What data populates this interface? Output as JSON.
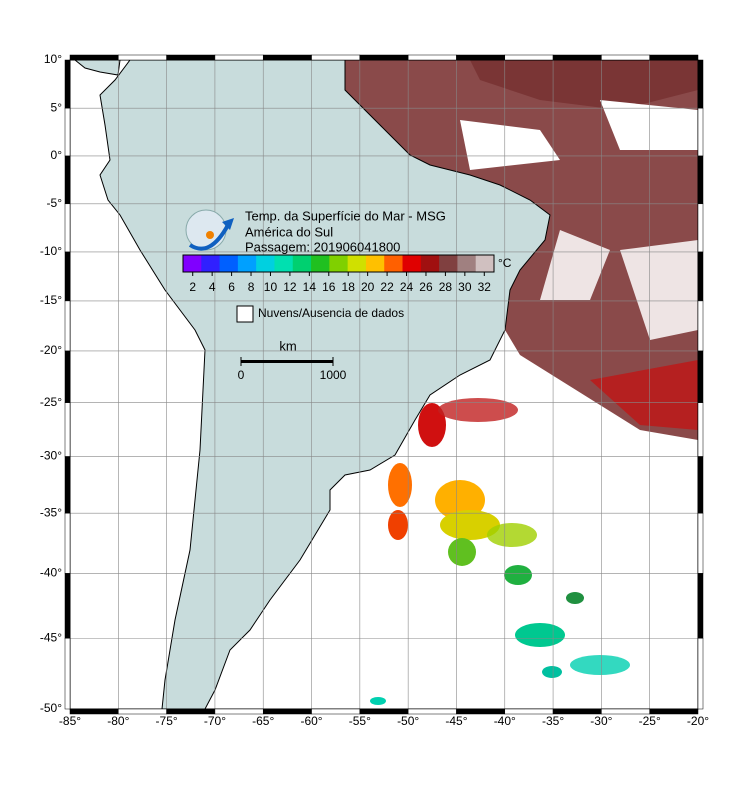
{
  "title_lines": [
    "Temp. da Superfície do Mar - MSG",
    "América do Sul",
    "Passagem: 201906041800"
  ],
  "map": {
    "xlim": [
      -85,
      -20
    ],
    "ylim": [
      -50,
      10
    ],
    "xticks": [
      {
        "value": -85,
        "label": "-85°"
      },
      {
        "value": -80,
        "label": "-80°"
      },
      {
        "value": -75,
        "label": "-75°"
      },
      {
        "value": -70,
        "label": "-70°"
      },
      {
        "value": -65,
        "label": "-65°"
      },
      {
        "value": -60,
        "label": "-60°"
      },
      {
        "value": -55,
        "label": "-55°"
      },
      {
        "value": -50,
        "label": "-50°"
      },
      {
        "value": -45,
        "label": "-45°"
      },
      {
        "value": -40,
        "label": "-40°"
      },
      {
        "value": -35,
        "label": "-35°"
      },
      {
        "value": -30,
        "label": "-30°"
      },
      {
        "value": -25,
        "label": "-25°"
      },
      {
        "value": -20,
        "label": "-20°"
      }
    ],
    "yticks": [
      {
        "value": 10,
        "label": "10°"
      },
      {
        "value": 5,
        "label": "5°"
      },
      {
        "value": 0,
        "label": "0°"
      },
      {
        "value": -5,
        "label": "-5°"
      },
      {
        "value": -10,
        "label": "-10°"
      },
      {
        "value": -15,
        "label": "-15°"
      },
      {
        "value": -20,
        "label": "-20°"
      },
      {
        "value": -25,
        "label": "-25°"
      },
      {
        "value": -30,
        "label": "-30°"
      },
      {
        "value": -35,
        "label": "-35°"
      },
      {
        "value": -40,
        "label": "-40°"
      },
      {
        "value": -45,
        "label": "-45°"
      },
      {
        "value": -50,
        "label": "-50°"
      }
    ],
    "grid": true,
    "projection": "mercator"
  },
  "colorbar": {
    "lim": [
      1,
      33
    ],
    "ticks": [
      2,
      4,
      6,
      8,
      10,
      12,
      14,
      16,
      18,
      20,
      22,
      24,
      26,
      28,
      30,
      32
    ],
    "unit": "°C",
    "colors": [
      "#8000ff",
      "#3020ff",
      "#0060ff",
      "#00a0ff",
      "#00d0e0",
      "#00e0b0",
      "#00d070",
      "#20c020",
      "#80d000",
      "#d0e000",
      "#ffc000",
      "#ff6000",
      "#e00000",
      "#a01010",
      "#804040",
      "#a08080",
      "#d0c0c0"
    ]
  },
  "legend": {
    "label": "Nuvens/Ausencia de dados"
  },
  "scale_bar": {
    "unit": "km",
    "ticks": [
      0,
      1000
    ]
  }
}
